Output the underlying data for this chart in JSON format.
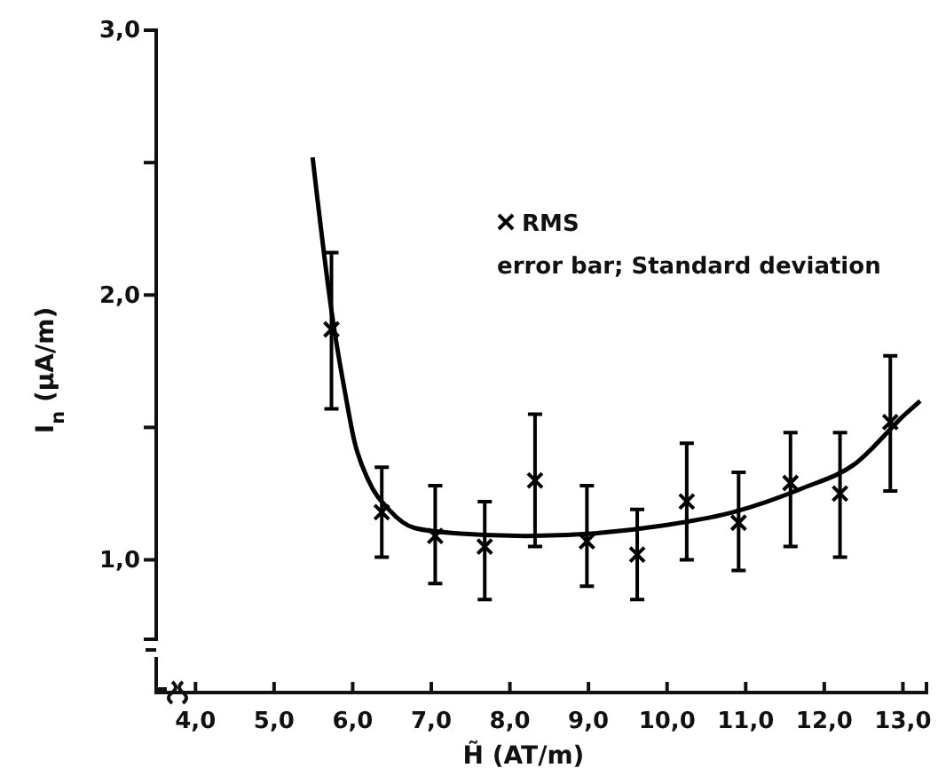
{
  "chart_data": {
    "type": "scatter",
    "xlabel": "H̃ (AT/m)",
    "ylabel": "I$_{n}$ (μA/m)",
    "xlim": [
      3.5,
      13.3
    ],
    "xticks": [
      {
        "value": 4,
        "label": "4,0"
      },
      {
        "value": 5,
        "label": "5,0"
      },
      {
        "value": 6,
        "label": "6,0"
      },
      {
        "value": 7,
        "label": "7,0"
      },
      {
        "value": 8,
        "label": "8,0"
      },
      {
        "value": 9,
        "label": "9,0"
      },
      {
        "value": 10,
        "label": "10,0"
      },
      {
        "value": 11,
        "label": "11,0"
      },
      {
        "value": 12,
        "label": "12,0"
      },
      {
        "value": 13,
        "label": "13,0"
      }
    ],
    "ylim": [
      0.7,
      3.0
    ],
    "yticks": [
      {
        "value": 1,
        "label": "1,0"
      },
      {
        "value": 1.5,
        "label": null
      },
      {
        "value": 2,
        "label": "2,0"
      },
      {
        "value": 2.5,
        "label": null
      },
      {
        "value": 3,
        "label": "3,0"
      }
    ],
    "marker": "cross",
    "legend": "top right",
    "grid": false,
    "annotations": [
      "error bar; Standard deviation"
    ],
    "series": [
      {
        "name": "RMS",
        "color": "#000000",
        "x": [
          5.73,
          6.37,
          7.05,
          7.68,
          8.32,
          8.98,
          9.62,
          10.25,
          10.91,
          11.57,
          12.2,
          12.84
        ],
        "values": [
          1.87,
          1.18,
          1.09,
          1.05,
          1.3,
          1.07,
          1.02,
          1.22,
          1.14,
          1.29,
          1.25,
          1.52
        ],
        "errors": [
          [
            1.57,
            2.16
          ],
          [
            1.01,
            1.35
          ],
          [
            0.91,
            1.28
          ],
          [
            0.85,
            1.22
          ],
          [
            1.05,
            1.55
          ],
          [
            0.9,
            1.28
          ],
          [
            0.85,
            1.19
          ],
          [
            1.0,
            1.44
          ],
          [
            0.96,
            1.33
          ],
          [
            1.05,
            1.48
          ],
          [
            1.01,
            1.48
          ],
          [
            1.26,
            1.77
          ]
        ]
      },
      {
        "type": "line",
        "color": "#000000",
        "marker": "none",
        "x": [
          5.49,
          5.75,
          5.91,
          6.02,
          6.2,
          6.46,
          6.79,
          7.33,
          8.2,
          9.08,
          9.96,
          10.84,
          11.72,
          12.38,
          13.03,
          13.22
        ],
        "values": [
          2.52,
          1.9,
          1.62,
          1.45,
          1.3,
          1.19,
          1.12,
          1.1,
          1.09,
          1.1,
          1.13,
          1.18,
          1.27,
          1.36,
          1.55,
          1.6
        ]
      }
    ]
  }
}
